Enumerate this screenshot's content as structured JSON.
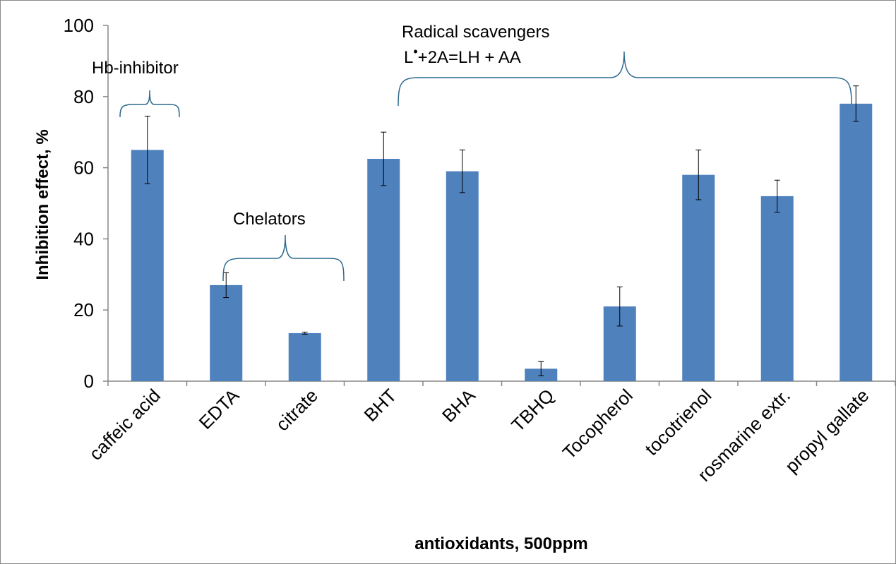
{
  "chart_data": {
    "type": "bar",
    "title": "",
    "xlabel": "antioxidants, 500ppm",
    "ylabel": "Inhibition effect, %",
    "ylim": [
      0,
      100
    ],
    "yticks": [
      0,
      20,
      40,
      60,
      80,
      100
    ],
    "grid": false,
    "legend": "none",
    "bar_color": "#4f81bd",
    "categories": [
      "caffeic acid",
      "EDTA",
      "citrate",
      "BHT",
      "BHA",
      "TBHQ",
      "Tocopherol",
      "tocotrienol",
      "rosmarine extr.",
      "propyl gallate"
    ],
    "values": [
      65,
      27,
      13.5,
      62.5,
      59,
      3.5,
      21,
      58,
      52,
      78
    ],
    "errors": [
      9.5,
      3.5,
      0.3,
      7.5,
      6,
      2,
      5.5,
      7,
      4.5,
      5
    ],
    "annotations": {
      "hb_inhibitor": "Hb-inhibitor",
      "chelators": "Chelators",
      "radical_line1": "Radical scavengers",
      "radical_line2_prefix": "L",
      "radical_line2_sup": "•",
      "radical_line2_suffix": "+2A=LH + AA"
    }
  }
}
